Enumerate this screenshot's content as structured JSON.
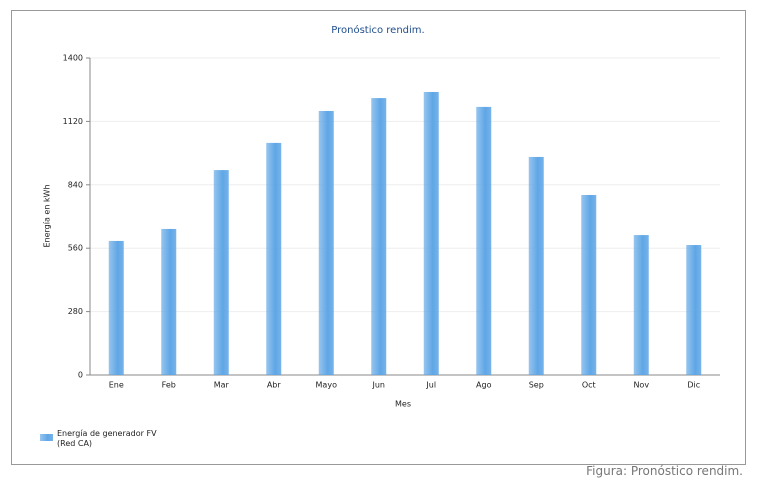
{
  "chart_data": {
    "type": "bar",
    "title": "Pronóstico rendim.",
    "x_label": "Mes",
    "y_label": "Energía en kWh",
    "categories": [
      "Ene",
      "Feb",
      "Mar",
      "Abr",
      "Mayo",
      "Jun",
      "Jul",
      "Ago",
      "Sep",
      "Oct",
      "Nov",
      "Dic"
    ],
    "series": [
      {
        "name": "Energía de generador FV (Red CA)",
        "color": "#5fa6e6",
        "values": [
          592,
          645,
          905,
          1025,
          1166,
          1223,
          1250,
          1184,
          963,
          795,
          618,
          574
        ]
      }
    ],
    "ylim": [
      0,
      1400
    ],
    "yticks": [
      0,
      280,
      560,
      840,
      1120,
      1400
    ],
    "grid": true,
    "legend": "bottom-left"
  },
  "caption": "Figura: Pronóstico rendim."
}
